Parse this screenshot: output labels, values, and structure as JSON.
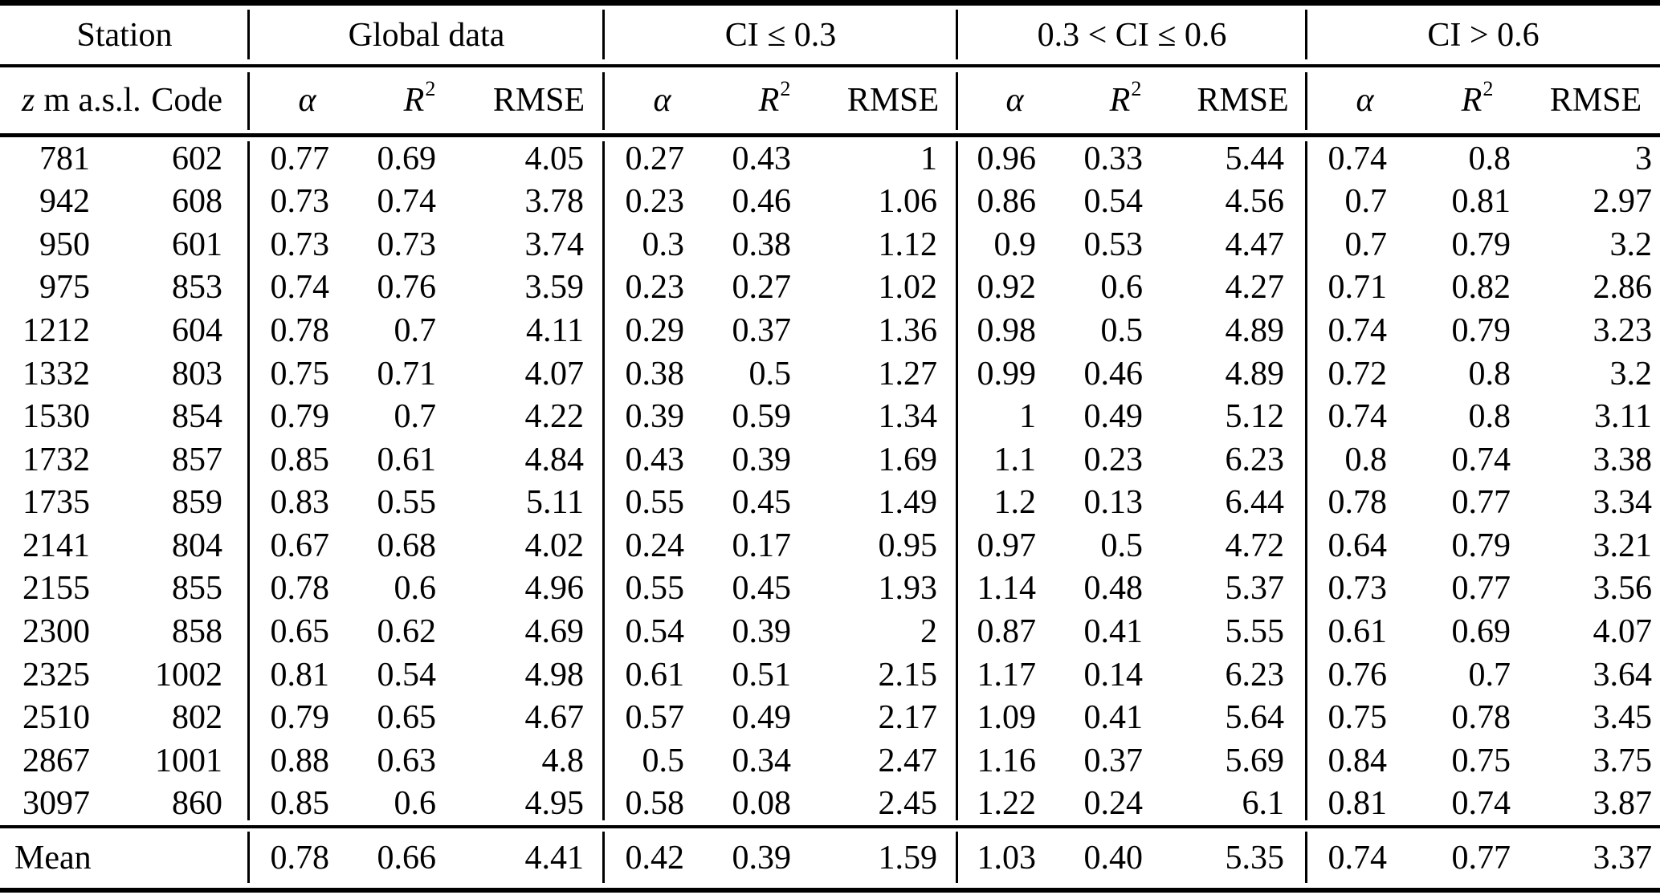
{
  "table": {
    "station_header": {
      "var": "z",
      "unit": "m a.s.l.",
      "code": "Code"
    },
    "metric_headers": [
      {
        "label": "α",
        "italic": true
      },
      {
        "label": "R",
        "sup": "2",
        "italic": true
      },
      {
        "label": "RMSE",
        "italic": false
      }
    ]
  },
  "chart_data": {
    "type": "table",
    "column_groups": [
      "Station",
      "Global data",
      "CI ≤ 0.3",
      "0.3 < CI ≤ 0.6",
      "CI > 0.6"
    ],
    "columns": [
      "z m a.s.l.",
      "Code",
      "α",
      "R2",
      "RMSE",
      "α",
      "R2",
      "RMSE",
      "α",
      "R2",
      "RMSE",
      "α",
      "R2",
      "RMSE"
    ],
    "rows": [
      [
        "781",
        "602",
        "0.77",
        "0.69",
        "4.05",
        "0.27",
        "0.43",
        "1",
        "0.96",
        "0.33",
        "5.44",
        "0.74",
        "0.8",
        "3"
      ],
      [
        "942",
        "608",
        "0.73",
        "0.74",
        "3.78",
        "0.23",
        "0.46",
        "1.06",
        "0.86",
        "0.54",
        "4.56",
        "0.7",
        "0.81",
        "2.97"
      ],
      [
        "950",
        "601",
        "0.73",
        "0.73",
        "3.74",
        "0.3",
        "0.38",
        "1.12",
        "0.9",
        "0.53",
        "4.47",
        "0.7",
        "0.79",
        "3.2"
      ],
      [
        "975",
        "853",
        "0.74",
        "0.76",
        "3.59",
        "0.23",
        "0.27",
        "1.02",
        "0.92",
        "0.6",
        "4.27",
        "0.71",
        "0.82",
        "2.86"
      ],
      [
        "1212",
        "604",
        "0.78",
        "0.7",
        "4.11",
        "0.29",
        "0.37",
        "1.36",
        "0.98",
        "0.5",
        "4.89",
        "0.74",
        "0.79",
        "3.23"
      ],
      [
        "1332",
        "803",
        "0.75",
        "0.71",
        "4.07",
        "0.38",
        "0.5",
        "1.27",
        "0.99",
        "0.46",
        "4.89",
        "0.72",
        "0.8",
        "3.2"
      ],
      [
        "1530",
        "854",
        "0.79",
        "0.7",
        "4.22",
        "0.39",
        "0.59",
        "1.34",
        "1",
        "0.49",
        "5.12",
        "0.74",
        "0.8",
        "3.11"
      ],
      [
        "1732",
        "857",
        "0.85",
        "0.61",
        "4.84",
        "0.43",
        "0.39",
        "1.69",
        "1.1",
        "0.23",
        "6.23",
        "0.8",
        "0.74",
        "3.38"
      ],
      [
        "1735",
        "859",
        "0.83",
        "0.55",
        "5.11",
        "0.55",
        "0.45",
        "1.49",
        "1.2",
        "0.13",
        "6.44",
        "0.78",
        "0.77",
        "3.34"
      ],
      [
        "2141",
        "804",
        "0.67",
        "0.68",
        "4.02",
        "0.24",
        "0.17",
        "0.95",
        "0.97",
        "0.5",
        "4.72",
        "0.64",
        "0.79",
        "3.21"
      ],
      [
        "2155",
        "855",
        "0.78",
        "0.6",
        "4.96",
        "0.55",
        "0.45",
        "1.93",
        "1.14",
        "0.48",
        "5.37",
        "0.73",
        "0.77",
        "3.56"
      ],
      [
        "2300",
        "858",
        "0.65",
        "0.62",
        "4.69",
        "0.54",
        "0.39",
        "2",
        "0.87",
        "0.41",
        "5.55",
        "0.61",
        "0.69",
        "4.07"
      ],
      [
        "2325",
        "1002",
        "0.81",
        "0.54",
        "4.98",
        "0.61",
        "0.51",
        "2.15",
        "1.17",
        "0.14",
        "6.23",
        "0.76",
        "0.7",
        "3.64"
      ],
      [
        "2510",
        "802",
        "0.79",
        "0.65",
        "4.67",
        "0.57",
        "0.49",
        "2.17",
        "1.09",
        "0.41",
        "5.64",
        "0.75",
        "0.78",
        "3.45"
      ],
      [
        "2867",
        "1001",
        "0.88",
        "0.63",
        "4.8",
        "0.5",
        "0.34",
        "2.47",
        "1.16",
        "0.37",
        "5.69",
        "0.84",
        "0.75",
        "3.75"
      ],
      [
        "3097",
        "860",
        "0.85",
        "0.6",
        "4.95",
        "0.58",
        "0.08",
        "2.45",
        "1.22",
        "0.24",
        "6.1",
        "0.81",
        "0.74",
        "3.87"
      ]
    ],
    "mean_row": [
      "Mean",
      "0.78",
      "0.66",
      "4.41",
      "0.42",
      "0.39",
      "1.59",
      "1.03",
      "0.40",
      "5.35",
      "0.74",
      "0.77",
      "3.37"
    ]
  }
}
